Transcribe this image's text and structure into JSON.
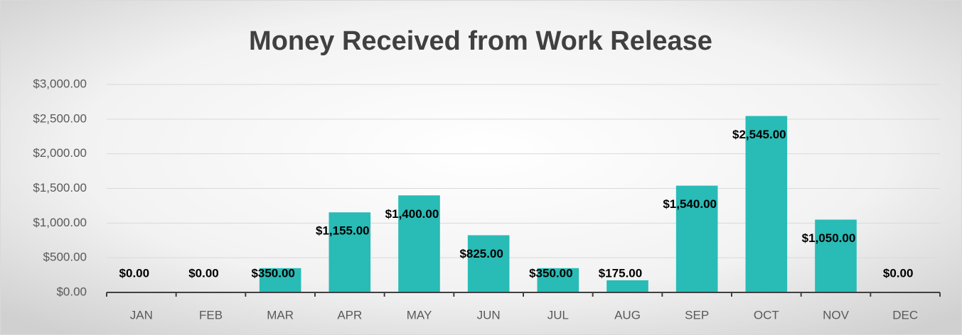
{
  "chart_data": {
    "type": "bar",
    "title": "Money Received from Work Release",
    "categories": [
      "JAN",
      "FEB",
      "MAR",
      "APR",
      "MAY",
      "JUN",
      "JUL",
      "AUG",
      "SEP",
      "OCT",
      "NOV",
      "DEC"
    ],
    "values": [
      0,
      0,
      350,
      1155,
      1400,
      825,
      350,
      175,
      1540,
      2545,
      1050,
      0
    ],
    "value_labels": [
      "$0.00",
      "$0.00",
      "$350.00",
      "$1,155.00",
      "$1,400.00",
      "$825.00",
      "$350.00",
      "$175.00",
      "$1,540.00",
      "$2,545.00",
      "$1,050.00",
      "$0.00"
    ],
    "color": "#29bbb6",
    "ylim": [
      0,
      3000
    ],
    "yticks": [
      {
        "value": 0,
        "label": "$0.00"
      },
      {
        "value": 500,
        "label": "$500.00"
      },
      {
        "value": 1000,
        "label": "$1,000.00"
      },
      {
        "value": 1500,
        "label": "$1,500.00"
      },
      {
        "value": 2000,
        "label": "$2,000.00"
      },
      {
        "value": 2500,
        "label": "$2,500.00"
      },
      {
        "value": 3000,
        "label": "$3,000.00"
      }
    ],
    "grid": true
  }
}
